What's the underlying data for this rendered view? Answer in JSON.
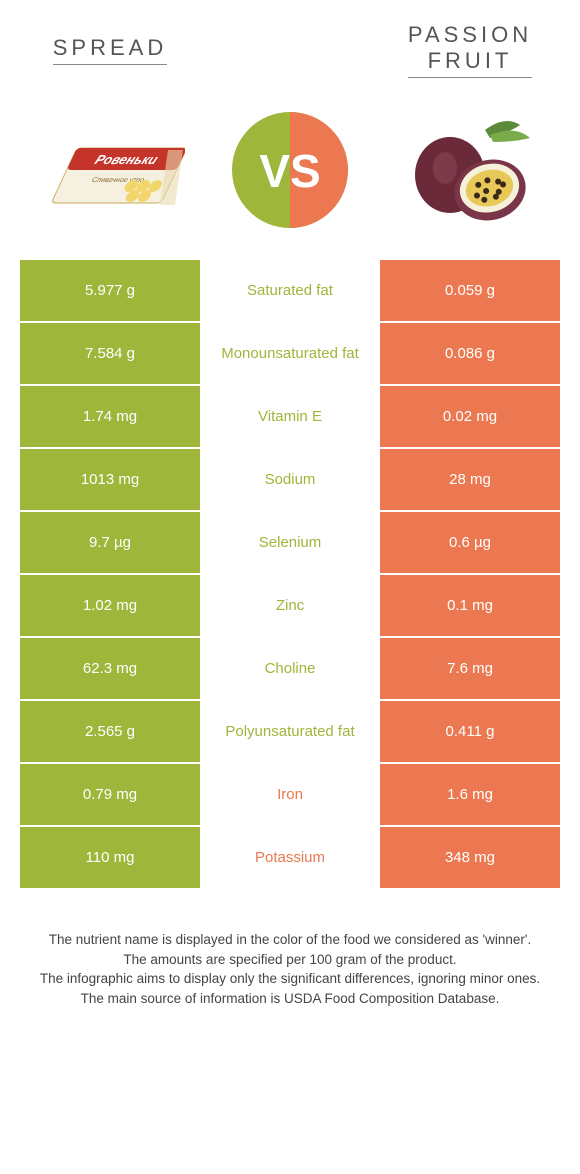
{
  "colors": {
    "green": "#9eb63a",
    "orange": "#eb7850",
    "text": "#555555",
    "white": "#ffffff"
  },
  "header": {
    "left_title": "SPREAD",
    "right_title": "PASSION FRUIT",
    "vs_label": "VS"
  },
  "table": {
    "rows": [
      {
        "left": "5.977 g",
        "label": "Saturated fat",
        "right": "0.059 g",
        "winner": "left"
      },
      {
        "left": "7.584 g",
        "label": "Monounsaturated fat",
        "right": "0.086 g",
        "winner": "left"
      },
      {
        "left": "1.74 mg",
        "label": "Vitamin E",
        "right": "0.02 mg",
        "winner": "left"
      },
      {
        "left": "1013 mg",
        "label": "Sodium",
        "right": "28 mg",
        "winner": "left"
      },
      {
        "left": "9.7 µg",
        "label": "Selenium",
        "right": "0.6 µg",
        "winner": "left"
      },
      {
        "left": "1.02 mg",
        "label": "Zinc",
        "right": "0.1 mg",
        "winner": "left"
      },
      {
        "left": "62.3 mg",
        "label": "Choline",
        "right": "7.6 mg",
        "winner": "left"
      },
      {
        "left": "2.565 g",
        "label": "Polyunsaturated fat",
        "right": "0.411 g",
        "winner": "left"
      },
      {
        "left": "0.79 mg",
        "label": "Iron",
        "right": "1.6 mg",
        "winner": "right"
      },
      {
        "left": "110 mg",
        "label": "Potassium",
        "right": "348 mg",
        "winner": "right"
      }
    ]
  },
  "footer": {
    "line1": "The nutrient name is displayed in the color of the food we considered as 'winner'.",
    "line2": "The amounts are specified per 100 gram of the product.",
    "line3": "The infographic aims to display only the significant differences, ignoring minor ones.",
    "line4": "The main source of information is USDA Food Composition Database."
  }
}
